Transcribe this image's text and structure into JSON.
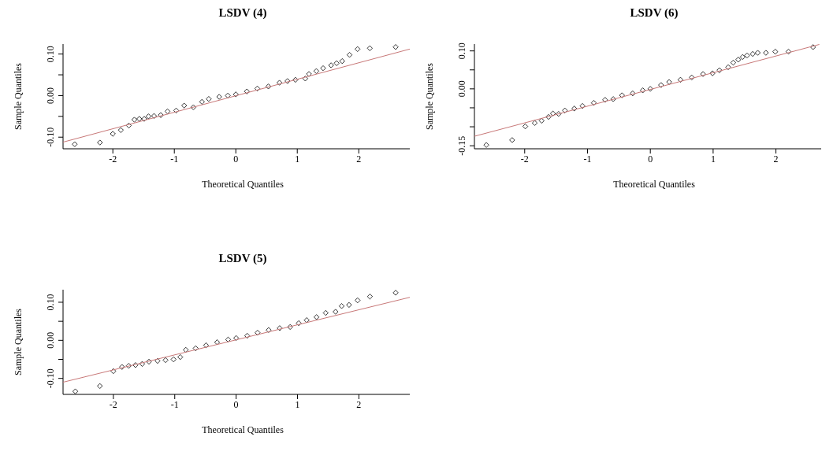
{
  "chart_data": [
    {
      "type": "scatter",
      "title": "LSDV (4)",
      "xlabel": "Theoretical Quantiles",
      "ylabel": "Sample Quantiles",
      "grid": false,
      "legend": false,
      "xlim": [
        -2.81,
        2.83
      ],
      "ylim": [
        -0.128,
        0.124
      ],
      "xticks": [
        -2,
        -1,
        0,
        1,
        2
      ],
      "yticks": [
        {
          "value": -0.1,
          "label": "-0.10"
        },
        {
          "value": -0.05,
          "label": null
        },
        {
          "value": 0,
          "label": "0.00"
        },
        {
          "value": 0.05,
          "label": null
        },
        {
          "value": 0.1,
          "label": "0.10"
        }
      ],
      "series": [
        {
          "marker": "diamond",
          "color": "#000000",
          "x": [
            -2.62,
            -2.21,
            -2.0,
            -1.87,
            -1.74,
            -1.65,
            -1.57,
            -1.49,
            -1.42,
            -1.33,
            -1.22,
            -1.11,
            -0.97,
            -0.84,
            -0.69,
            -0.55,
            -0.44,
            -0.27,
            -0.13,
            0.0,
            0.18,
            0.35,
            0.53,
            0.71,
            0.84,
            0.97,
            1.13,
            1.19,
            1.31,
            1.42,
            1.55,
            1.64,
            1.73,
            1.85,
            1.98,
            2.18,
            2.6
          ],
          "values": [
            -0.117,
            -0.113,
            -0.092,
            -0.083,
            -0.072,
            -0.058,
            -0.056,
            -0.056,
            -0.05,
            -0.049,
            -0.047,
            -0.038,
            -0.036,
            -0.024,
            -0.028,
            -0.015,
            -0.008,
            -0.003,
            0.0,
            0.003,
            0.01,
            0.017,
            0.022,
            0.031,
            0.035,
            0.038,
            0.041,
            0.052,
            0.059,
            0.066,
            0.073,
            0.078,
            0.083,
            0.098,
            0.112,
            0.114,
            0.117
          ]
        },
        {
          "type": "line",
          "marker": "none",
          "color": "#c87878",
          "x": [
            -2.81,
            2.83
          ],
          "values": [
            -0.112,
            0.112
          ]
        }
      ]
    },
    {
      "type": "scatter",
      "title": "LSDV (6)",
      "xlabel": "Theoretical Quantiles",
      "ylabel": "Sample Quantiles",
      "grid": false,
      "legend": false,
      "xlim": [
        -2.8,
        2.72
      ],
      "ylim": [
        -0.158,
        0.118
      ],
      "xticks": [
        -2,
        -1,
        0,
        1,
        2
      ],
      "yticks": [
        {
          "value": -0.15,
          "label": "-0.15"
        },
        {
          "value": -0.1,
          "label": null
        },
        {
          "value": -0.05,
          "label": null
        },
        {
          "value": 0,
          "label": "0.00"
        },
        {
          "value": 0.05,
          "label": null
        },
        {
          "value": 0.1,
          "label": "0.10"
        }
      ],
      "series": [
        {
          "marker": "diamond",
          "color": "#000000",
          "x": [
            -2.61,
            -2.2,
            -1.99,
            -1.84,
            -1.73,
            -1.62,
            -1.55,
            -1.46,
            -1.36,
            -1.21,
            -1.08,
            -0.9,
            -0.72,
            -0.59,
            -0.45,
            -0.28,
            -0.12,
            0,
            0.17,
            0.3,
            0.48,
            0.66,
            0.84,
            0.99,
            1.1,
            1.24,
            1.32,
            1.4,
            1.47,
            1.54,
            1.63,
            1.71,
            1.84,
            1.99,
            2.2,
            2.59
          ],
          "values": [
            -0.148,
            -0.135,
            -0.099,
            -0.09,
            -0.084,
            -0.074,
            -0.065,
            -0.066,
            -0.057,
            -0.052,
            -0.045,
            -0.037,
            -0.029,
            -0.027,
            -0.017,
            -0.012,
            -0.004,
            0,
            0.01,
            0.018,
            0.024,
            0.03,
            0.039,
            0.041,
            0.049,
            0.057,
            0.069,
            0.077,
            0.084,
            0.088,
            0.092,
            0.095,
            0.095,
            0.098,
            0.098,
            0.11
          ]
        },
        {
          "type": "line",
          "marker": "none",
          "color": "#c87878",
          "x": [
            -2.8,
            2.69
          ],
          "values": [
            -0.125,
            0.117
          ]
        }
      ]
    },
    {
      "type": "scatter",
      "title": "LSDV (5)",
      "xlabel": "Theoretical Quantiles",
      "ylabel": "Sample Quantiles",
      "grid": false,
      "legend": false,
      "xlim": [
        -2.82,
        2.83
      ],
      "ylim": [
        -0.142,
        0.133
      ],
      "xticks": [
        -2,
        -1,
        0,
        1,
        2
      ],
      "yticks": [
        {
          "value": -0.1,
          "label": "-0.10"
        },
        {
          "value": -0.05,
          "label": null
        },
        {
          "value": 0,
          "label": "0.00"
        },
        {
          "value": 0.05,
          "label": null
        },
        {
          "value": 0.1,
          "label": "0.10"
        }
      ],
      "series": [
        {
          "marker": "diamond",
          "color": "#000000",
          "x": [
            -2.62,
            -2.22,
            -2.0,
            -1.86,
            -1.75,
            -1.64,
            -1.53,
            -1.42,
            -1.28,
            -1.15,
            -1.02,
            -0.91,
            -0.82,
            -0.66,
            -0.49,
            -0.31,
            -0.13,
            0.0,
            0.18,
            0.35,
            0.53,
            0.71,
            0.88,
            1.02,
            1.15,
            1.31,
            1.46,
            1.62,
            1.72,
            1.84,
            1.98,
            2.18,
            2.6
          ],
          "values": [
            -0.134,
            -0.12,
            -0.081,
            -0.07,
            -0.067,
            -0.065,
            -0.062,
            -0.056,
            -0.054,
            -0.052,
            -0.05,
            -0.044,
            -0.025,
            -0.021,
            -0.013,
            -0.005,
            0.002,
            0.006,
            0.012,
            0.02,
            0.027,
            0.032,
            0.035,
            0.045,
            0.053,
            0.061,
            0.072,
            0.075,
            0.09,
            0.093,
            0.105,
            0.115,
            0.125
          ]
        },
        {
          "type": "line",
          "marker": "none",
          "color": "#c87878",
          "x": [
            -2.82,
            2.83
          ],
          "values": [
            -0.11,
            0.113
          ]
        }
      ]
    }
  ]
}
